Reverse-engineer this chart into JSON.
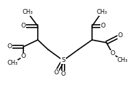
{
  "bg_color": "#ffffff",
  "line_color": "#000000",
  "lw": 1.2,
  "fs": 6.5,
  "figsize": [
    1.98,
    1.41
  ],
  "dpi": 100,
  "xlim": [
    0,
    198
  ],
  "ylim": [
    0,
    141
  ]
}
